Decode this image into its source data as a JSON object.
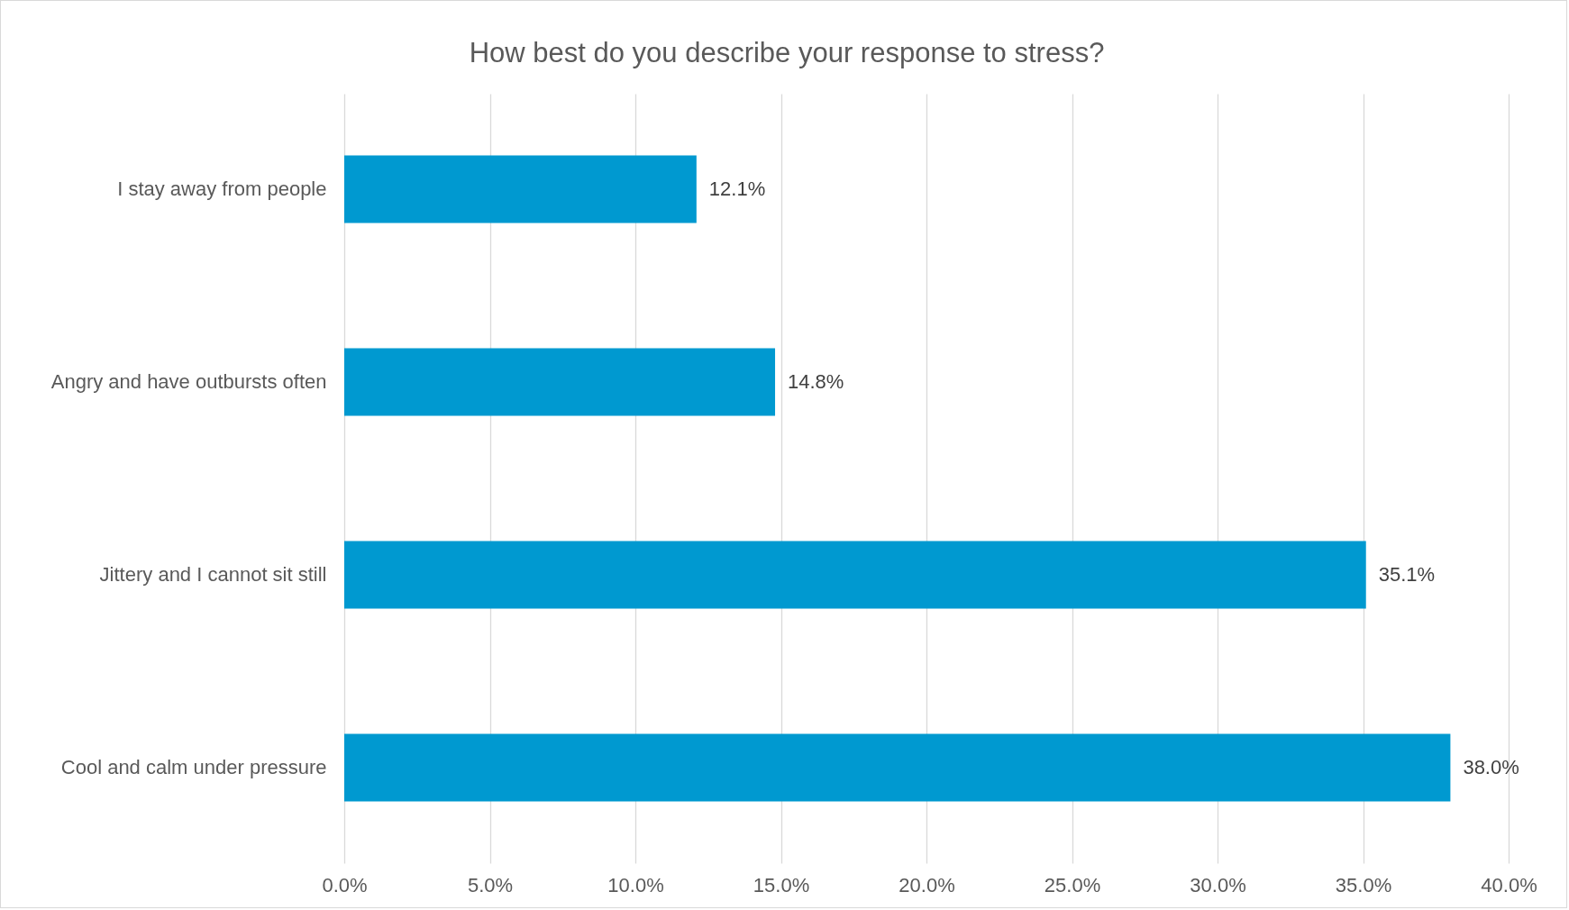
{
  "chart_data": {
    "type": "bar",
    "orientation": "horizontal",
    "title": "How best do you describe your response to stress?",
    "categories": [
      "I stay away from people",
      "Angry and have outbursts often",
      "Jittery and I cannot sit still",
      "Cool and calm under pressure"
    ],
    "values": [
      12.1,
      14.8,
      35.1,
      38.0
    ],
    "value_labels": [
      "12.1%",
      "14.8%",
      "35.1%",
      "38.0%"
    ],
    "color": "#0099d0",
    "xlim": [
      0,
      40
    ],
    "xticks": [
      {
        "value": 0,
        "label": "0.0%"
      },
      {
        "value": 5,
        "label": "5.0%"
      },
      {
        "value": 10,
        "label": "10.0%"
      },
      {
        "value": 15,
        "label": "15.0%"
      },
      {
        "value": 20,
        "label": "20.0%"
      },
      {
        "value": 25,
        "label": "25.0%"
      },
      {
        "value": 30,
        "label": "30.0%"
      },
      {
        "value": 35,
        "label": "35.0%"
      },
      {
        "value": 40,
        "label": "40.0%"
      }
    ],
    "grid": "x"
  }
}
